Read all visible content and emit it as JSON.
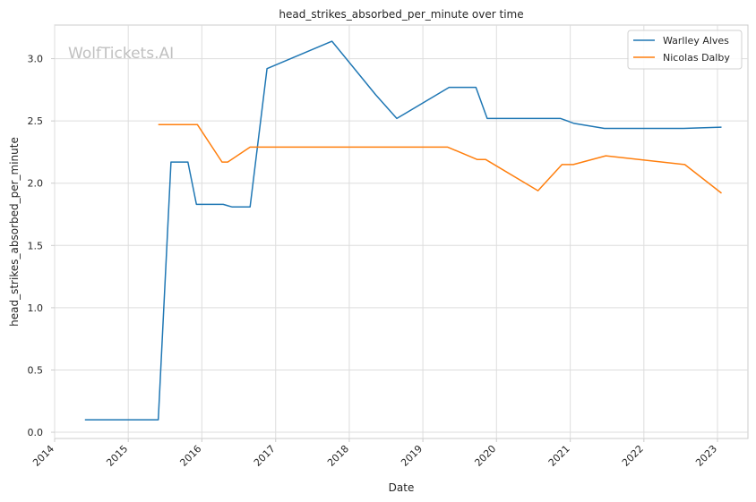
{
  "watermark": "WolfTickets.AI",
  "chart_data": {
    "type": "line",
    "title": "head_strikes_absorbed_per_minute over time",
    "xlabel": "Date",
    "ylabel": "head_strikes_absorbed_per_minute",
    "xlim": [
      "2014-01-01",
      "2023-06-01"
    ],
    "ylim": [
      -0.05,
      3.27
    ],
    "x_ticks": [
      "2014",
      "2015",
      "2016",
      "2017",
      "2018",
      "2019",
      "2020",
      "2021",
      "2022",
      "2023"
    ],
    "y_ticks": [
      "0.0",
      "0.5",
      "1.0",
      "1.5",
      "2.0",
      "2.5",
      "3.0"
    ],
    "grid": true,
    "legend_position": "top-right",
    "series": [
      {
        "name": "Warlley Alves",
        "color": "#1f77b4",
        "points": [
          [
            "2014-05-31",
            0.1
          ],
          [
            "2015-05-30",
            0.1
          ],
          [
            "2015-08-01",
            2.17
          ],
          [
            "2015-10-24",
            2.17
          ],
          [
            "2015-12-05",
            1.83
          ],
          [
            "2016-04-16",
            1.83
          ],
          [
            "2016-05-29",
            1.81
          ],
          [
            "2016-08-27",
            1.81
          ],
          [
            "2016-11-19",
            2.92
          ],
          [
            "2017-10-07",
            3.14
          ],
          [
            "2018-05-12",
            2.71
          ],
          [
            "2018-08-25",
            2.52
          ],
          [
            "2019-05-11",
            2.77
          ],
          [
            "2019-09-21",
            2.77
          ],
          [
            "2019-11-16",
            2.52
          ],
          [
            "2020-11-14",
            2.52
          ],
          [
            "2021-01-20",
            2.48
          ],
          [
            "2021-06-19",
            2.44
          ],
          [
            "2022-07-16",
            2.44
          ],
          [
            "2023-01-21",
            2.45
          ]
        ]
      },
      {
        "name": "Nicolas Dalby",
        "color": "#ff7f0e",
        "points": [
          [
            "2015-05-30",
            2.47
          ],
          [
            "2015-12-10",
            2.47
          ],
          [
            "2016-04-10",
            2.17
          ],
          [
            "2016-05-08",
            2.17
          ],
          [
            "2016-08-27",
            2.29
          ],
          [
            "2019-05-04",
            2.29
          ],
          [
            "2019-09-28",
            2.19
          ],
          [
            "2019-11-09",
            2.19
          ],
          [
            "2020-07-25",
            1.94
          ],
          [
            "2020-11-21",
            2.15
          ],
          [
            "2021-01-16",
            2.15
          ],
          [
            "2021-06-26",
            2.22
          ],
          [
            "2022-07-23",
            2.15
          ],
          [
            "2023-01-21",
            1.92
          ]
        ]
      }
    ]
  }
}
